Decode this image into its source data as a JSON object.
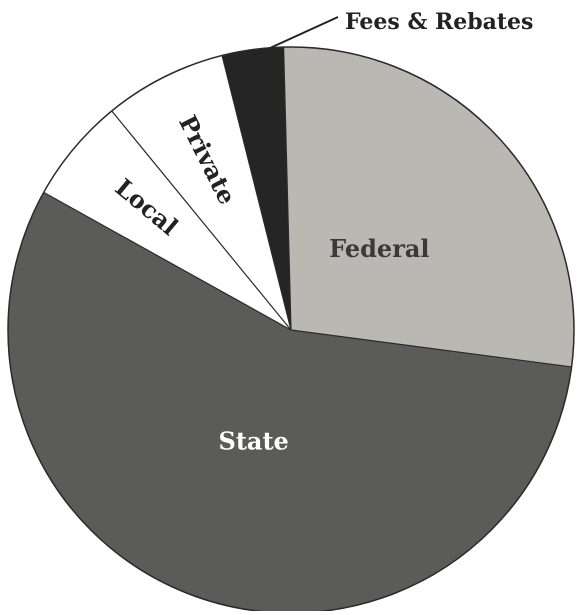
{
  "chart_data": {
    "type": "pie",
    "start_angle_deg": -1.5,
    "direction": "clockwise",
    "slices": [
      {
        "label": "Federal",
        "value": 27.5,
        "color": "#b9b8b3",
        "label_color": "#3a3a3a",
        "rotate": false
      },
      {
        "label": "State",
        "value": 56.0,
        "color": "#5b5b59",
        "label_color": "#ffffff",
        "rotate": false
      },
      {
        "label": "Local",
        "value": 6.0,
        "color": "#ffffff",
        "label_color": "#222222",
        "rotate": true
      },
      {
        "label": "Private",
        "value": 7.0,
        "color": "#ffffff",
        "label_color": "#222222",
        "rotate": true
      },
      {
        "label": "Fees & Rebates",
        "value": 3.5,
        "color": "#252525",
        "label_color": "#222222",
        "callout": true
      }
    ],
    "outline_color": "#2a2a2a"
  }
}
